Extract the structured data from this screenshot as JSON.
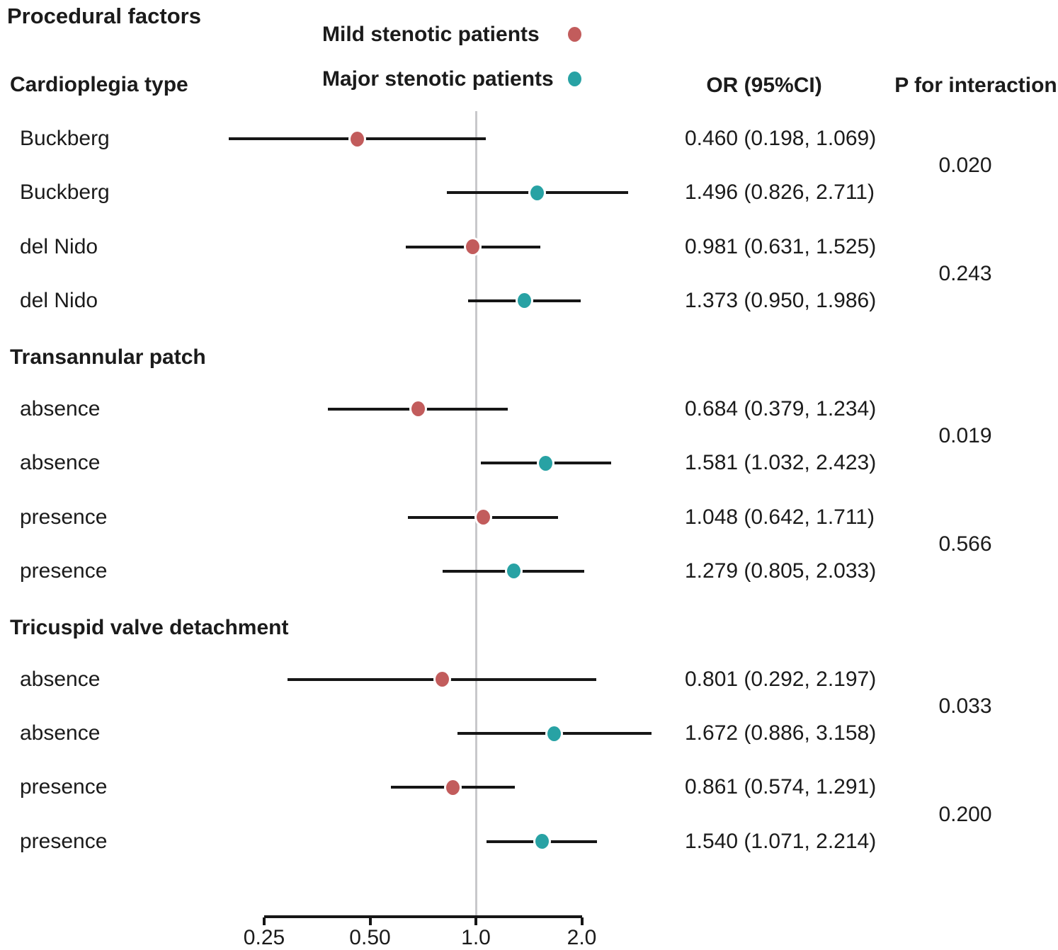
{
  "chart_data": {
    "type": "forest",
    "title": "Procedural factors",
    "legend": [
      {
        "label": "Mild stenotic patients",
        "series": "mild",
        "color": "#c25c5c"
      },
      {
        "label": "Major stenotic patients",
        "series": "major",
        "color": "#28a2a4"
      }
    ],
    "columns": {
      "or_header": "OR (95%CI)",
      "p_header": "P for interaction"
    },
    "x_axis": {
      "scale": "log2",
      "ref_line_value": 1.0,
      "ticks": [
        {
          "value": 0.25,
          "label": "0.25"
        },
        {
          "value": 0.5,
          "label": "0.50"
        },
        {
          "value": 1.0,
          "label": "1.0"
        },
        {
          "value": 2.0,
          "label": "2.0"
        }
      ]
    },
    "groups": [
      {
        "header": "Cardioplegia type",
        "pairs": [
          {
            "p_interaction": "0.020",
            "rows": [
              {
                "label": "Buckberg",
                "series": "mild",
                "or": 0.46,
                "ci_low": 0.198,
                "ci_high": 1.069,
                "or_text": "0.460 (0.198, 1.069)"
              },
              {
                "label": "Buckberg",
                "series": "major",
                "or": 1.496,
                "ci_low": 0.826,
                "ci_high": 2.711,
                "or_text": "1.496 (0.826, 2.711)"
              }
            ]
          },
          {
            "p_interaction": "0.243",
            "rows": [
              {
                "label": "del Nido",
                "series": "mild",
                "or": 0.981,
                "ci_low": 0.631,
                "ci_high": 1.525,
                "or_text": "0.981 (0.631, 1.525)"
              },
              {
                "label": "del Nido",
                "series": "major",
                "or": 1.373,
                "ci_low": 0.95,
                "ci_high": 1.986,
                "or_text": "1.373 (0.950, 1.986)"
              }
            ]
          }
        ]
      },
      {
        "header": "Transannular patch",
        "pairs": [
          {
            "p_interaction": "0.019",
            "rows": [
              {
                "label": "absence",
                "series": "mild",
                "or": 0.684,
                "ci_low": 0.379,
                "ci_high": 1.234,
                "or_text": "0.684 (0.379, 1.234)"
              },
              {
                "label": "absence",
                "series": "major",
                "or": 1.581,
                "ci_low": 1.032,
                "ci_high": 2.423,
                "or_text": "1.581 (1.032, 2.423)"
              }
            ]
          },
          {
            "p_interaction": "0.566",
            "rows": [
              {
                "label": "presence",
                "series": "mild",
                "or": 1.048,
                "ci_low": 0.642,
                "ci_high": 1.711,
                "or_text": "1.048 (0.642, 1.711)"
              },
              {
                "label": "presence",
                "series": "major",
                "or": 1.279,
                "ci_low": 0.805,
                "ci_high": 2.033,
                "or_text": "1.279 (0.805, 2.033)"
              }
            ]
          }
        ]
      },
      {
        "header": "Tricuspid valve detachment",
        "pairs": [
          {
            "p_interaction": "0.033",
            "rows": [
              {
                "label": "absence",
                "series": "mild",
                "or": 0.801,
                "ci_low": 0.292,
                "ci_high": 2.197,
                "or_text": "0.801 (0.292, 2.197)"
              },
              {
                "label": "absence",
                "series": "major",
                "or": 1.672,
                "ci_low": 0.886,
                "ci_high": 3.158,
                "or_text": "1.672 (0.886, 3.158)"
              }
            ]
          },
          {
            "p_interaction": "0.200",
            "rows": [
              {
                "label": "presence",
                "series": "mild",
                "or": 0.861,
                "ci_low": 0.574,
                "ci_high": 1.291,
                "or_text": "0.861 (0.574, 1.291)"
              },
              {
                "label": "presence",
                "series": "major",
                "or": 1.54,
                "ci_low": 1.071,
                "ci_high": 2.214,
                "or_text": "1.540 (1.071, 2.214)"
              }
            ]
          }
        ]
      }
    ]
  }
}
